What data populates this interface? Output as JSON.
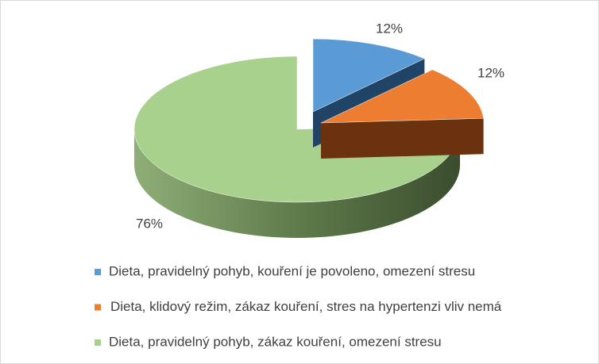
{
  "chart_data": {
    "type": "pie3d",
    "categories": [
      "Dieta, pravidelný pohyb, kouření je povoleno, omezení stresu",
      "Dieta, klidový režim, zákaz kouření, stres na hypertenzi vliv nemá",
      "Dieta, pravidelný pohyb, zákaz kouření, omezení stresu"
    ],
    "values": [
      12,
      12,
      76
    ],
    "value_labels": [
      "12%",
      "12%",
      "76%"
    ],
    "colors": [
      "#5b9bd5",
      "#ed7d31",
      "#a9d18e"
    ],
    "legend": "bottom"
  }
}
